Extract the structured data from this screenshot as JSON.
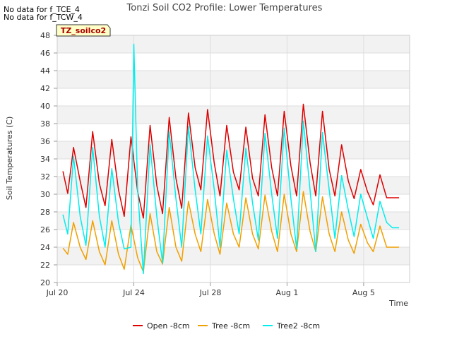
{
  "notes": [
    "No data for f_TCE_4",
    "No data for f_TCW_4"
  ],
  "chart_data": {
    "type": "line",
    "title": "Tonzi Soil CO2 Profile: Lower Temperatures",
    "xlabel": "Time",
    "ylabel": "Soil Temperatures (C)",
    "tag": "TZ_soilco2",
    "ylim": [
      20,
      48
    ],
    "yticks": [
      20,
      22,
      24,
      26,
      28,
      30,
      32,
      34,
      36,
      38,
      40,
      42,
      44,
      46,
      48
    ],
    "xlim": [
      20.0,
      26.4
    ],
    "xticks": [
      {
        "label": "Jul 20",
        "value": 0
      },
      {
        "label": "Jul 24",
        "value": 4
      },
      {
        "label": "Jul 28",
        "value": 8
      },
      {
        "label": "Aug 1",
        "value": 12
      },
      {
        "label": "Aug 5",
        "value": 16
      }
    ],
    "x_range_days": [
      0,
      18.4
    ],
    "grid": true,
    "banded_background": true,
    "legend_position": "bottom-center",
    "series": [
      {
        "name": "Open -8cm",
        "color": "#dd0000",
        "days": [
          0.3,
          0.55,
          0.85,
          1.2,
          1.5,
          1.85,
          2.2,
          2.5,
          2.85,
          3.2,
          3.5,
          3.85,
          4.2,
          4.5,
          4.85,
          5.2,
          5.5,
          5.85,
          6.2,
          6.5,
          6.85,
          7.2,
          7.5,
          7.85,
          8.2,
          8.5,
          8.85,
          9.2,
          9.5,
          9.85,
          10.2,
          10.5,
          10.85,
          11.2,
          11.5,
          11.85,
          12.2,
          12.5,
          12.85,
          13.2,
          13.5,
          13.85,
          14.2,
          14.5,
          14.85,
          15.2,
          15.5,
          15.85,
          16.2,
          16.5,
          16.85,
          17.2,
          17.5,
          17.85
        ],
        "values": [
          32.6,
          30.1,
          35.3,
          31.5,
          28.5,
          37.1,
          31.2,
          28.7,
          36.2,
          30.5,
          27.5,
          36.5,
          30.3,
          27.3,
          37.8,
          31.0,
          27.8,
          38.7,
          31.8,
          28.4,
          39.2,
          33.0,
          30.5,
          39.6,
          33.5,
          29.8,
          37.8,
          32.5,
          30.5,
          37.6,
          31.8,
          29.8,
          39.0,
          33.0,
          29.8,
          39.4,
          33.2,
          29.8,
          40.2,
          33.6,
          29.8,
          39.4,
          32.8,
          29.8,
          35.6,
          31.5,
          29.5,
          32.8,
          30.3,
          28.8,
          32.2,
          29.6,
          29.6,
          29.6
        ]
      },
      {
        "name": "Tree -8cm",
        "color": "#f0a000",
        "days": [
          0.3,
          0.55,
          0.85,
          1.2,
          1.5,
          1.85,
          2.2,
          2.5,
          2.85,
          3.2,
          3.5,
          3.85,
          4.2,
          4.5,
          4.85,
          5.2,
          5.5,
          5.85,
          6.2,
          6.5,
          6.85,
          7.2,
          7.5,
          7.85,
          8.2,
          8.5,
          8.85,
          9.2,
          9.5,
          9.85,
          10.2,
          10.5,
          10.85,
          11.2,
          11.5,
          11.85,
          12.2,
          12.5,
          12.85,
          13.2,
          13.5,
          13.85,
          14.2,
          14.5,
          14.85,
          15.2,
          15.5,
          15.85,
          16.2,
          16.5,
          16.85,
          17.2,
          17.5,
          17.85
        ],
        "values": [
          23.9,
          23.2,
          26.8,
          24.0,
          22.6,
          27.0,
          23.5,
          22.0,
          27.0,
          23.2,
          21.5,
          26.5,
          22.8,
          21.2,
          27.8,
          23.5,
          22.1,
          28.5,
          24.0,
          22.4,
          29.2,
          25.5,
          23.5,
          29.4,
          25.5,
          23.2,
          29.0,
          25.5,
          24.0,
          29.6,
          25.5,
          23.8,
          29.9,
          25.8,
          23.5,
          30.0,
          25.5,
          23.5,
          30.3,
          25.8,
          23.5,
          29.7,
          25.5,
          23.5,
          28.0,
          24.8,
          23.3,
          26.6,
          24.5,
          23.5,
          26.4,
          24.0,
          24.0,
          24.0
        ]
      },
      {
        "name": "Tree2 -8cm",
        "color": "#00eeee",
        "days": [
          0.3,
          0.55,
          0.85,
          1.2,
          1.5,
          1.85,
          2.2,
          2.5,
          2.85,
          3.2,
          3.5,
          3.85,
          4.0,
          4.2,
          4.5,
          4.85,
          5.2,
          5.5,
          5.85,
          6.2,
          6.5,
          6.85,
          7.2,
          7.5,
          7.85,
          8.2,
          8.5,
          8.85,
          9.2,
          9.5,
          9.85,
          10.2,
          10.5,
          10.85,
          11.2,
          11.5,
          11.85,
          12.2,
          12.5,
          12.85,
          13.2,
          13.5,
          13.85,
          14.2,
          14.5,
          14.85,
          15.2,
          15.5,
          15.85,
          16.2,
          16.5,
          16.85,
          17.2,
          17.5,
          17.85
        ],
        "values": [
          27.7,
          25.5,
          34.3,
          27.5,
          24.2,
          35.3,
          27.5,
          24.0,
          32.9,
          26.8,
          23.8,
          24.0,
          47.0,
          30.5,
          21.0,
          35.6,
          27.5,
          22.2,
          37.1,
          29.5,
          24.0,
          37.7,
          30.5,
          25.5,
          36.6,
          30.5,
          24.0,
          35.0,
          29.5,
          25.5,
          35.2,
          29.0,
          24.8,
          36.9,
          30.0,
          25.0,
          37.5,
          29.5,
          23.8,
          38.3,
          30.5,
          23.5,
          37.0,
          30.5,
          25.0,
          32.1,
          28.2,
          25.2,
          30.0,
          27.3,
          25.0,
          29.2,
          26.8,
          26.2,
          26.2
        ]
      }
    ]
  }
}
